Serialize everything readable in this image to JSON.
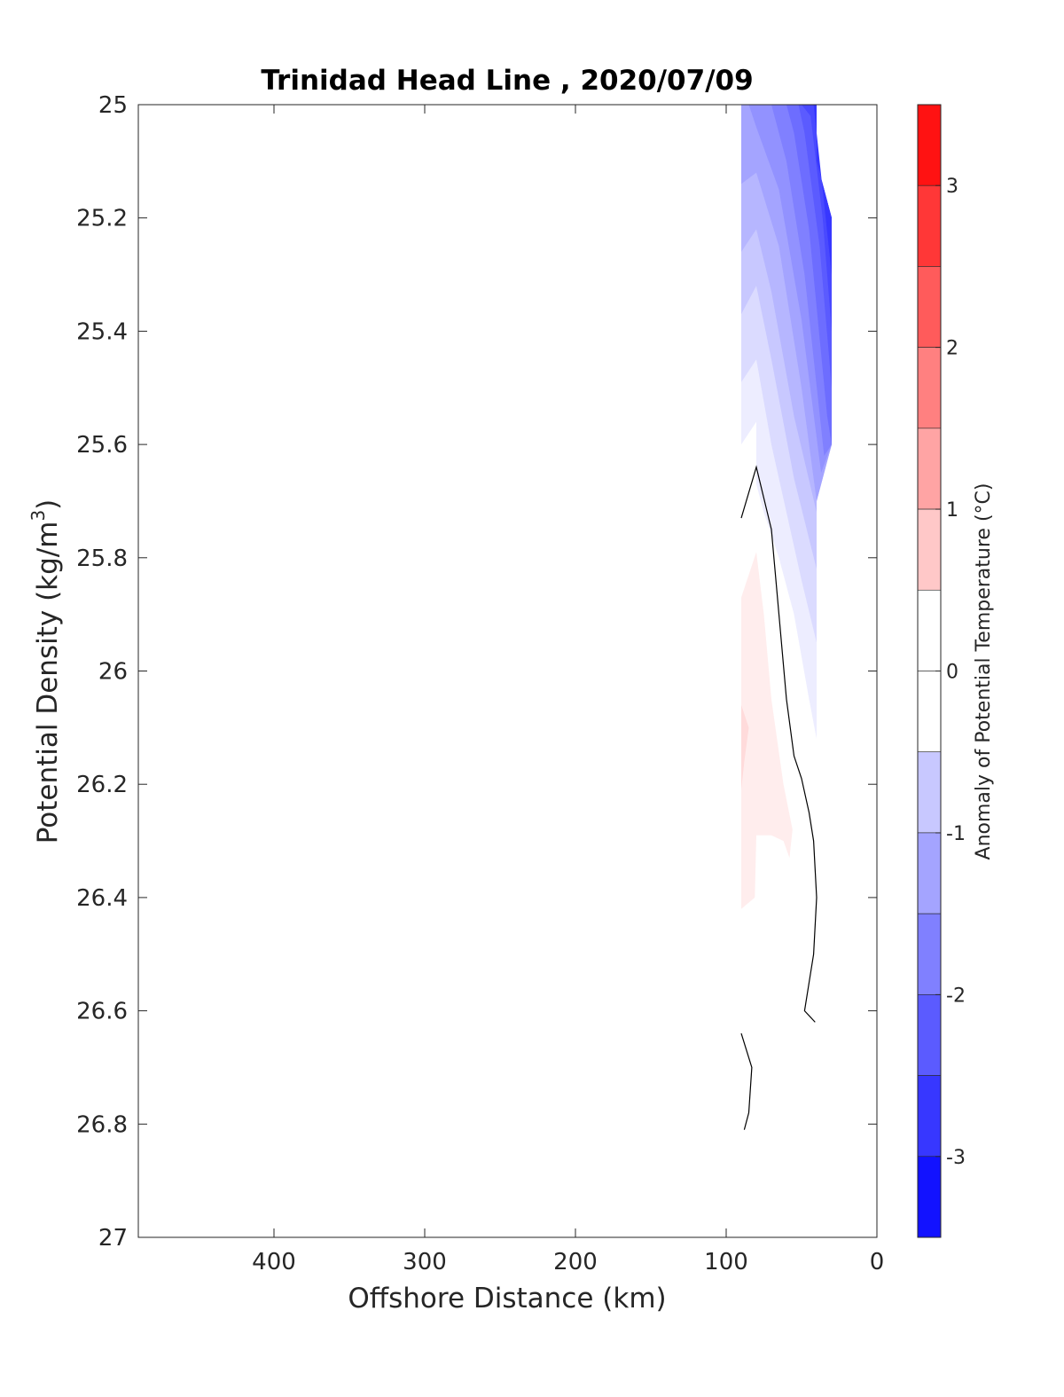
{
  "chart_data": {
    "type": "contour",
    "title": "Trinidad Head Line , 2020/07/09",
    "xlabel": "Offshore Distance (km)",
    "ylabel_main": "Potential Density (kg/m",
    "ylabel_sup": "3",
    "ylabel_close": ")",
    "x_axis": {
      "lim": [
        490,
        0
      ],
      "reversed": true,
      "ticks": [
        400,
        300,
        200,
        100,
        0
      ],
      "tick_labels": [
        "400",
        "300",
        "200",
        "100",
        "0"
      ]
    },
    "y_axis": {
      "lim": [
        25,
        27
      ],
      "reversed": true,
      "ticks": [
        25,
        25.2,
        25.4,
        25.6,
        25.8,
        26,
        26.2,
        26.4,
        26.6,
        26.8,
        27
      ],
      "tick_labels": [
        "25",
        "25.2",
        "25.4",
        "25.6",
        "25.8",
        "26",
        "26.2",
        "26.4",
        "26.6",
        "26.8",
        "27"
      ]
    },
    "grid": false,
    "colorbar": {
      "label": "Anomaly of Potential Temperature (°C)",
      "range": [
        -3.5,
        3.5
      ],
      "level_step": 0.25,
      "ticks": [
        3,
        2,
        1,
        0,
        -1,
        -2,
        -3
      ],
      "tick_labels": [
        "3",
        "2",
        "1",
        "0",
        "-1",
        "-2",
        "-3"
      ],
      "color_max": "#ff0000",
      "color_mid": "#ffffff",
      "color_min": "#0000ff"
    },
    "filled_regions": [
      {
        "anomaly": -0.25,
        "points": [
          [
            90,
            25.0
          ],
          [
            40,
            25.0
          ],
          [
            40,
            25.1
          ],
          [
            30,
            25.2
          ],
          [
            30,
            25.6
          ],
          [
            40,
            25.7
          ],
          [
            40,
            26.12
          ],
          [
            45,
            26.05
          ],
          [
            55,
            25.9
          ],
          [
            65,
            25.8
          ],
          [
            75,
            25.72
          ],
          [
            80,
            25.67
          ],
          [
            80,
            25.56
          ],
          [
            90,
            25.6
          ]
        ]
      },
      {
        "anomaly": -0.5,
        "points": [
          [
            90,
            25.0
          ],
          [
            40,
            25.0
          ],
          [
            40,
            25.1
          ],
          [
            30,
            25.2
          ],
          [
            30,
            25.6
          ],
          [
            40,
            25.7
          ],
          [
            40,
            25.95
          ],
          [
            50,
            25.84
          ],
          [
            60,
            25.72
          ],
          [
            70,
            25.6
          ],
          [
            80,
            25.45
          ],
          [
            90,
            25.49
          ]
        ]
      },
      {
        "anomaly": -0.75,
        "points": [
          [
            90,
            25.0
          ],
          [
            40,
            25.0
          ],
          [
            40,
            25.1
          ],
          [
            30,
            25.2
          ],
          [
            30,
            25.6
          ],
          [
            40,
            25.7
          ],
          [
            40,
            25.82
          ],
          [
            55,
            25.66
          ],
          [
            70,
            25.45
          ],
          [
            80,
            25.32
          ],
          [
            90,
            25.37
          ]
        ]
      },
      {
        "anomaly": -1.0,
        "points": [
          [
            90,
            25.0
          ],
          [
            40,
            25.0
          ],
          [
            40,
            25.1
          ],
          [
            30,
            25.2
          ],
          [
            30,
            25.6
          ],
          [
            40,
            25.7
          ],
          [
            40,
            25.72
          ],
          [
            55,
            25.55
          ],
          [
            70,
            25.33
          ],
          [
            80,
            25.22
          ],
          [
            90,
            25.26
          ]
        ]
      },
      {
        "anomaly": -1.25,
        "points": [
          [
            90,
            25.0
          ],
          [
            40,
            25.0
          ],
          [
            40,
            25.1
          ],
          [
            30,
            25.2
          ],
          [
            30,
            25.6
          ],
          [
            40,
            25.7
          ],
          [
            50,
            25.5
          ],
          [
            65,
            25.25
          ],
          [
            80,
            25.12
          ],
          [
            90,
            25.14
          ]
        ]
      },
      {
        "anomaly": -1.5,
        "points": [
          [
            90,
            25.0
          ],
          [
            40,
            25.0
          ],
          [
            40,
            25.1
          ],
          [
            30,
            25.2
          ],
          [
            30,
            25.6
          ],
          [
            37,
            25.65
          ],
          [
            50,
            25.38
          ],
          [
            65,
            25.15
          ],
          [
            80,
            25.04
          ],
          [
            85,
            25.0
          ]
        ]
      },
      {
        "anomaly": -1.75,
        "points": [
          [
            78,
            25.0
          ],
          [
            40,
            25.0
          ],
          [
            40,
            25.1
          ],
          [
            30,
            25.2
          ],
          [
            30,
            25.6
          ],
          [
            35,
            25.62
          ],
          [
            48,
            25.3
          ],
          [
            60,
            25.1
          ],
          [
            70,
            25.0
          ]
        ]
      },
      {
        "anomaly": -2.0,
        "points": [
          [
            68,
            25.0
          ],
          [
            40,
            25.0
          ],
          [
            40,
            25.1
          ],
          [
            30,
            25.2
          ],
          [
            30,
            25.6
          ],
          [
            33,
            25.55
          ],
          [
            45,
            25.22
          ],
          [
            55,
            25.05
          ],
          [
            60,
            25.0
          ]
        ]
      },
      {
        "anomaly": -2.25,
        "points": [
          [
            58,
            25.0
          ],
          [
            40,
            25.0
          ],
          [
            40,
            25.1
          ],
          [
            30,
            25.2
          ],
          [
            30,
            25.5
          ],
          [
            38,
            25.25
          ],
          [
            48,
            25.05
          ],
          [
            52,
            25.0
          ]
        ]
      },
      {
        "anomaly": -2.5,
        "points": [
          [
            50,
            25.0
          ],
          [
            40,
            25.0
          ],
          [
            40,
            25.1
          ],
          [
            30,
            25.2
          ],
          [
            30,
            25.4
          ],
          [
            36,
            25.2
          ],
          [
            44,
            25.02
          ]
        ]
      },
      {
        "anomaly": -2.75,
        "points": [
          [
            45,
            25.0
          ],
          [
            40,
            25.0
          ],
          [
            40,
            25.1
          ],
          [
            30,
            25.2
          ],
          [
            30,
            25.3
          ],
          [
            36,
            25.15
          ],
          [
            42,
            25.0
          ]
        ]
      },
      {
        "anomaly": 0.25,
        "points": [
          [
            90,
            25.87
          ],
          [
            80,
            25.79
          ],
          [
            75,
            25.9
          ],
          [
            70,
            26.05
          ],
          [
            62,
            26.2
          ],
          [
            56,
            26.28
          ],
          [
            58,
            26.33
          ],
          [
            62,
            26.3
          ],
          [
            70,
            26.29
          ],
          [
            80,
            26.29
          ],
          [
            81,
            26.4
          ],
          [
            90,
            26.42
          ]
        ]
      },
      {
        "anomaly": 0.5,
        "points": [
          [
            90,
            26.06
          ],
          [
            85,
            26.1
          ],
          [
            88,
            26.16
          ],
          [
            90,
            26.21
          ]
        ]
      }
    ],
    "zero_contours": [
      [
        [
          90,
          25.73
        ],
        [
          80,
          25.64
        ],
        [
          70,
          25.75
        ],
        [
          65,
          25.9
        ],
        [
          60,
          26.05
        ],
        [
          55,
          26.15
        ],
        [
          50,
          26.19
        ],
        [
          45,
          26.25
        ],
        [
          42,
          26.3
        ],
        [
          40,
          26.4
        ],
        [
          42,
          26.5
        ],
        [
          45,
          26.55
        ],
        [
          48,
          26.6
        ],
        [
          41,
          26.62
        ]
      ],
      [
        [
          90,
          26.64
        ],
        [
          83,
          26.7
        ],
        [
          85,
          26.78
        ],
        [
          88,
          26.81
        ]
      ]
    ]
  }
}
